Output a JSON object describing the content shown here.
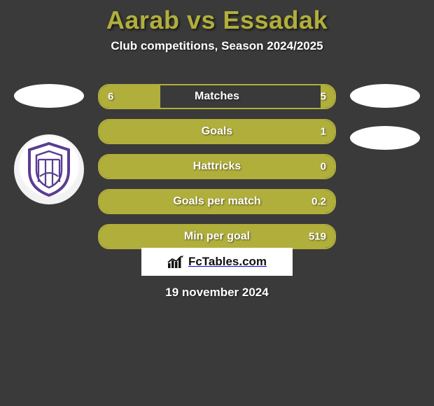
{
  "title": "Aarab vs Essadak",
  "subtitle": "Club competitions, Season 2024/2025",
  "accent_color": "#b1af3b",
  "background_color": "#3a3a3a",
  "text_color": "#ffffff",
  "bars": [
    {
      "label": "Matches",
      "left_val": "6",
      "right_val": "5",
      "left_pct": 26,
      "right_pct": 6
    },
    {
      "label": "Goals",
      "left_val": "",
      "right_val": "1",
      "left_pct": 0,
      "right_pct": 100
    },
    {
      "label": "Hattricks",
      "left_val": "",
      "right_val": "0",
      "left_pct": 0,
      "right_pct": 100
    },
    {
      "label": "Goals per match",
      "left_val": "",
      "right_val": "0.2",
      "left_pct": 0,
      "right_pct": 100
    },
    {
      "label": "Min per goal",
      "left_val": "",
      "right_val": "519",
      "left_pct": 0,
      "right_pct": 100
    }
  ],
  "footer": {
    "brand": "FcTables.com",
    "icon": "bar-chart-trend-icon"
  },
  "date": "19 november 2024"
}
